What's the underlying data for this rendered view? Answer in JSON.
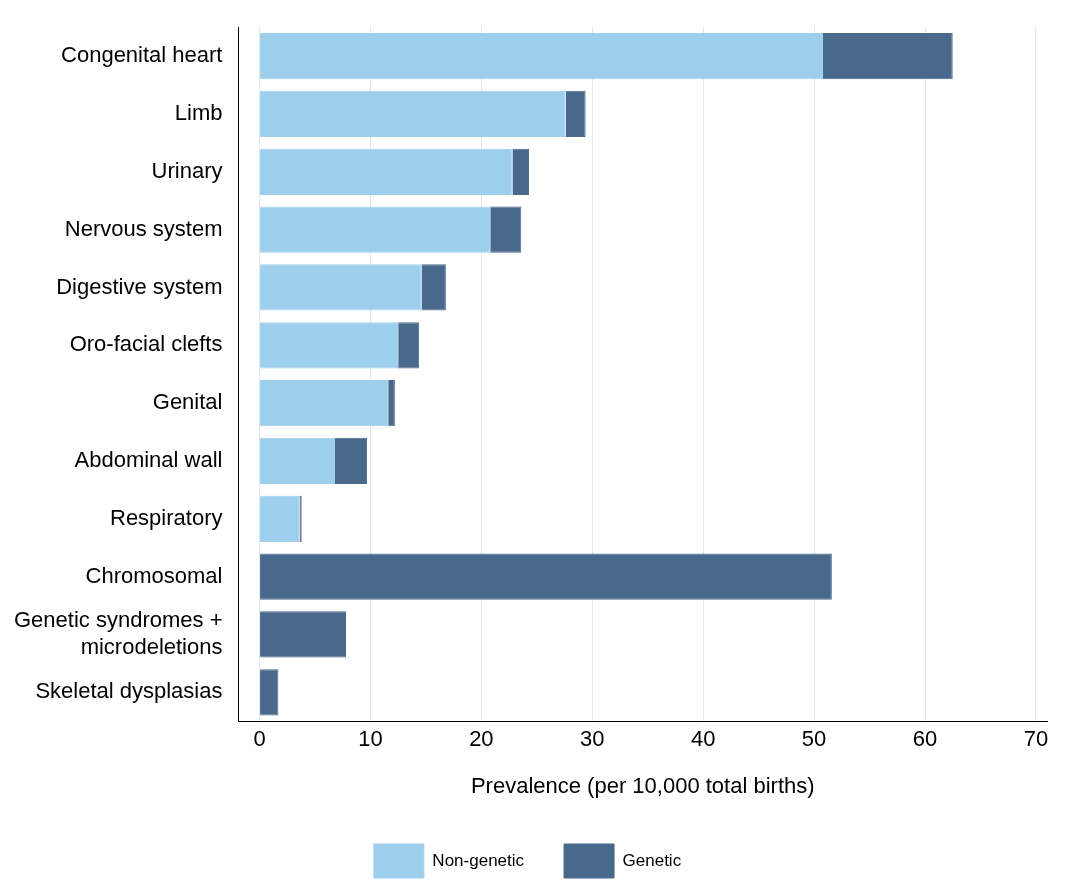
{
  "chart_data": {
    "type": "bar",
    "orientation": "horizontal",
    "stacked": true,
    "xlabel": "Prevalence (per 10,000 total births)",
    "categories": [
      "Congenital heart",
      "Limb",
      "Urinary",
      "Nervous system",
      "Digestive system",
      "Oro-facial clefts",
      "Genital",
      "Abdominal wall",
      "Respiratory",
      "Chromosomal",
      "Genetic syndromes + microdeletions",
      "Skeletal dysplasias"
    ],
    "series": [
      {
        "name": "Non-genetic",
        "color": "#9dcfed",
        "values": [
          50.8,
          27.6,
          22.8,
          20.8,
          14.6,
          12.5,
          11.6,
          6.8,
          3.6,
          0,
          0,
          0
        ]
      },
      {
        "name": "Genetic",
        "color": "#48698b",
        "values": [
          11.7,
          1.8,
          1.5,
          2.8,
          2.2,
          1.9,
          0.6,
          2.9,
          0.2,
          51.6,
          7.8,
          1.7
        ]
      }
    ],
    "xlim": [
      -1.9,
      71
    ],
    "xticks": [
      0,
      10,
      20,
      30,
      40,
      50,
      60,
      70
    ],
    "grid": "x",
    "legend": "bottom"
  }
}
